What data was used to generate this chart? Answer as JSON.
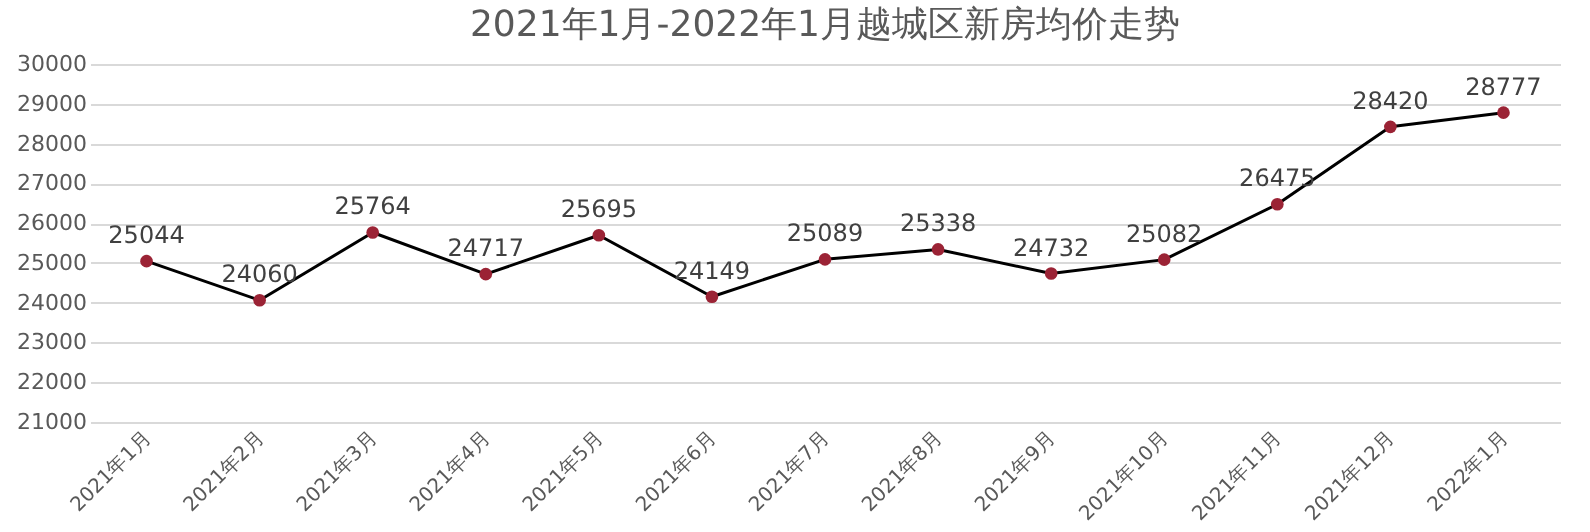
{
  "chart_data": {
    "type": "line",
    "title": "2021年1月-2022年1月越城区新房均价走势",
    "categories": [
      "2021年1月",
      "2021年2月",
      "2021年3月",
      "2021年4月",
      "2021年5月",
      "2021年6月",
      "2021年7月",
      "2021年8月",
      "2021年9月",
      "2021年10月",
      "2021年11月",
      "2021年12月",
      "2022年1月"
    ],
    "series": [
      {
        "color": "#000000",
        "colors": [
          "#9b2335",
          "#9b2335",
          "#9b2335",
          "#9b2335",
          "#9b2335",
          "#9b2335",
          "#9b2335",
          "#9b2335",
          "#9b2335",
          "#9b2335",
          "#9b2335",
          "#9b2335",
          "#9b2335"
        ],
        "values": [
          25044,
          24060,
          25764,
          24717,
          25695,
          24149,
          25089,
          25338,
          24732,
          25082,
          26475,
          28420,
          28777
        ]
      }
    ],
    "ylim": [
      21000,
      30000
    ],
    "yticks": [
      21000,
      22000,
      23000,
      24000,
      25000,
      26000,
      27000,
      28000,
      29000,
      30000
    ],
    "grid": "y",
    "marker": "circle",
    "line_style": "solid",
    "data_labels": true
  }
}
